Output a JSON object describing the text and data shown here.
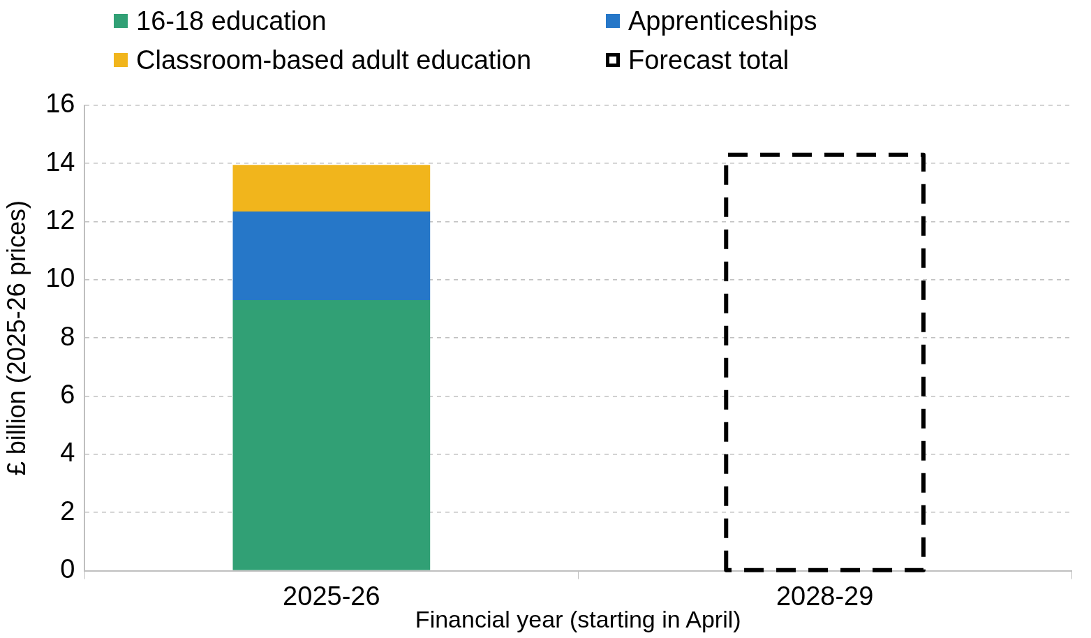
{
  "chart_data": {
    "type": "bar",
    "stacked": true,
    "xlabel": "Financial year (starting in April)",
    "ylabel": "£ billion (2025-26 prices)",
    "categories": [
      "2025-26",
      "2028-29"
    ],
    "series": [
      {
        "name": "16-18 education",
        "color": "#31a075",
        "values": [
          9.3,
          null
        ]
      },
      {
        "name": "Apprenticeships",
        "color": "#2677c8",
        "values": [
          3.05,
          null
        ]
      },
      {
        "name": "Classroom-based adult education",
        "color": "#f1b51c",
        "values": [
          1.6,
          null
        ]
      },
      {
        "name": "Forecast total",
        "color": "#000000",
        "line_style": "dashed",
        "values": [
          null,
          14.3
        ]
      }
    ],
    "ylim": [
      0,
      16
    ],
    "yticks": [
      0,
      2,
      4,
      6,
      8,
      10,
      12,
      14,
      16
    ],
    "grid": "y",
    "legend": "top left"
  }
}
